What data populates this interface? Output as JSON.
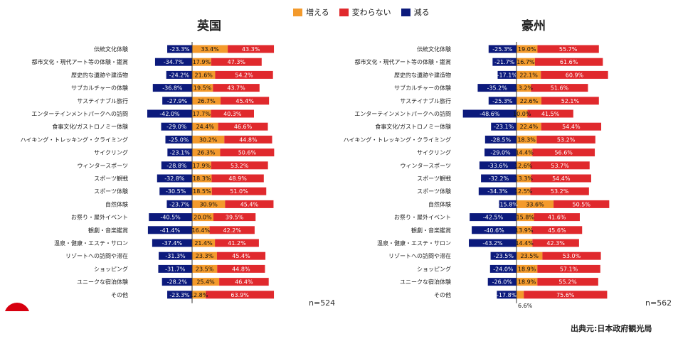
{
  "legend": {
    "increase": {
      "label": "増える",
      "color": "#f39a2c"
    },
    "nochange": {
      "label": "変わらない",
      "color": "#e0292d"
    },
    "decrease": {
      "label": "減る",
      "color": "#0c1a7c"
    }
  },
  "source": "出典元:日本政府観光局",
  "chart_data": [
    {
      "type": "bar",
      "title": "英国",
      "n_label": "n=524",
      "categories": [
        "伝統文化体験",
        "都市文化・現代アート等の体験・鑑賞",
        "歴史的な遺跡や建造物",
        "サブカルチャーの体験",
        "サステイナブル旅行",
        "エンターテインメントパークへの訪問",
        "食事文化/ガストロノミー体験",
        "ハイキング・トレッキング・クライミング",
        "サイクリング",
        "ウィンタースポーツ",
        "スポーツ観戦",
        "スポーツ体験",
        "自然体験",
        "お祭り・屋外イベント",
        "観劇・音楽鑑賞",
        "温泉・健康・エステ・サロン",
        "リゾートへの訪問や滞在",
        "ショッピング",
        "ユニークな宿泊体験",
        "その他"
      ],
      "series": [
        {
          "name": "減る",
          "values": [
            -23.3,
            -34.7,
            -24.2,
            -36.8,
            -27.9,
            -42.0,
            -29.0,
            -25.0,
            -23.1,
            -28.8,
            -32.8,
            -30.5,
            -23.7,
            -40.5,
            -41.4,
            -37.4,
            -31.3,
            -31.7,
            -28.2,
            -23.3
          ]
        },
        {
          "name": "増える",
          "values": [
            33.4,
            17.9,
            21.6,
            19.5,
            26.7,
            17.7,
            24.4,
            30.2,
            26.3,
            17.9,
            18.3,
            18.5,
            30.9,
            20.0,
            16.4,
            21.4,
            23.3,
            23.5,
            25.4,
            12.8
          ]
        },
        {
          "name": "変わらない",
          "values": [
            43.3,
            47.3,
            54.2,
            43.7,
            45.4,
            40.3,
            46.6,
            44.8,
            50.6,
            53.2,
            48.9,
            51.0,
            45.4,
            39.5,
            42.2,
            41.2,
            45.4,
            44.8,
            46.4,
            63.9
          ]
        }
      ]
    },
    {
      "type": "bar",
      "title": "豪州",
      "n_label": "n=562",
      "categories": [
        "伝統文化体験",
        "都市文化・現代アート等の体験・鑑賞",
        "歴史的な遺跡や建造物",
        "サブカルチャーの体験",
        "サステイナブル旅行",
        "エンターテインメントパークへの訪問",
        "食事文化/ガストロノミー体験",
        "ハイキング・トレッキング・クライミング",
        "サイクリング",
        "ウィンタースポーツ",
        "スポーツ観戦",
        "スポーツ体験",
        "自然体験",
        "お祭り・屋外イベント",
        "観劇・音楽鑑賞",
        "温泉・健康・エステ・サロン",
        "リゾートへの訪問や滞在",
        "ショッピング",
        "ユニークな宿泊体験",
        "その他"
      ],
      "series": [
        {
          "name": "減る",
          "values": [
            -25.3,
            -21.7,
            -17.1,
            -35.2,
            -25.3,
            -48.6,
            -23.1,
            -28.5,
            -29.0,
            -33.6,
            -32.2,
            -34.3,
            -15.8,
            -42.5,
            -40.6,
            -43.2,
            -23.5,
            -24.0,
            -26.0,
            -17.8
          ]
        },
        {
          "name": "増える",
          "values": [
            19.0,
            16.7,
            22.1,
            13.2,
            22.6,
            10.0,
            22.4,
            18.3,
            14.4,
            12.6,
            13.3,
            12.5,
            33.6,
            15.8,
            13.9,
            14.4,
            23.5,
            18.9,
            18.9,
            6.6
          ]
        },
        {
          "name": "変わらない",
          "values": [
            55.7,
            61.6,
            60.9,
            51.6,
            52.1,
            41.5,
            54.4,
            53.2,
            56.6,
            53.7,
            54.4,
            53.2,
            50.5,
            41.6,
            45.6,
            42.3,
            53.0,
            57.1,
            55.2,
            75.6
          ]
        }
      ]
    }
  ]
}
